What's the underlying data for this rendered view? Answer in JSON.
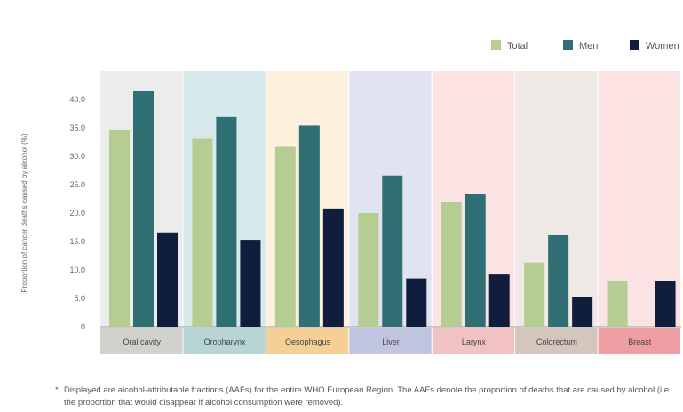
{
  "chart_data": {
    "type": "bar",
    "title": "",
    "ylabel": "Proportion of cancer deaths caused by alcohol (%)",
    "xlabel": "",
    "ylim": [
      0,
      45
    ],
    "yticks": [
      "0",
      "5.0",
      "10.0",
      "15.0",
      "20.0",
      "25.0",
      "30.0",
      "35.0",
      "40.0"
    ],
    "grid": false,
    "legend_position": "top-right",
    "categories": [
      "Oral cavity",
      "Oropharynx",
      "Oesophagus",
      "Liver",
      "Larynx",
      "Colorectum",
      "Breast"
    ],
    "category_colors": {
      "band": [
        "#ececec",
        "#d7e9ea",
        "#fdf0dc",
        "#e2e3f0",
        "#fbe3e4",
        "#efe9e6",
        "#fbe2e3"
      ],
      "label": [
        "#d2d2cd",
        "#b6d5d4",
        "#f5cf96",
        "#c1c4de",
        "#f2c2c2",
        "#d5c6bd",
        "#ef9ea3"
      ]
    },
    "series": [
      {
        "name": "Total",
        "color": "#b5cd93",
        "values": [
          34.7,
          33.2,
          31.8,
          20.0,
          21.9,
          11.3,
          8.1
        ]
      },
      {
        "name": "Men",
        "color": "#2f6e72",
        "values": [
          41.5,
          36.9,
          35.4,
          26.6,
          23.4,
          16.1,
          null
        ]
      },
      {
        "name": "Women",
        "color": "#101d3d",
        "values": [
          16.6,
          15.3,
          20.8,
          8.5,
          9.2,
          5.3,
          8.1
        ]
      }
    ]
  },
  "footnote": {
    "mark": "*",
    "text": "Displayed are alcohol-attributable fractions (AAFs) for the entire WHO European Region. The AAFs denote the proportion of deaths that are caused by alcohol (i.e. the proportion that would disappear if alcohol consumption were removed)."
  }
}
